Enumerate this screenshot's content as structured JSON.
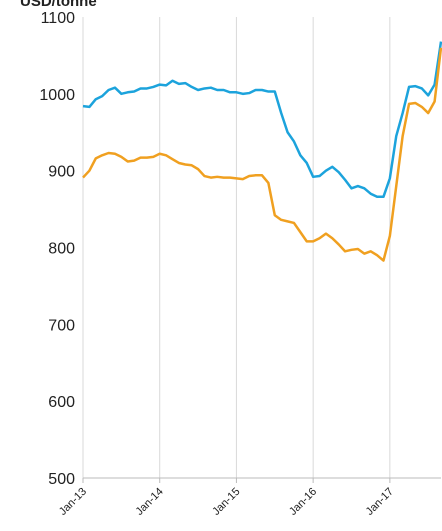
{
  "chart_data": {
    "type": "line",
    "title": "USD/tonne",
    "categories": [
      "Jan-13",
      null,
      null,
      null,
      null,
      null,
      null,
      null,
      null,
      null,
      null,
      null,
      "Jan-14",
      null,
      null,
      null,
      null,
      null,
      null,
      null,
      null,
      null,
      null,
      null,
      "Jan-15",
      null,
      null,
      null,
      null,
      null,
      null,
      null,
      null,
      null,
      null,
      null,
      "Jan-16",
      null,
      null,
      null,
      null,
      null,
      null,
      null,
      null,
      null,
      null,
      null,
      "Jan-17",
      null,
      null,
      null,
      null,
      null,
      null,
      null,
      null
    ],
    "series": [
      {
        "color": "#1ca3dc",
        "values": [
          984,
          983,
          993,
          997,
          1005,
          1008,
          1000,
          1002,
          1003,
          1007,
          1007,
          1009,
          1012,
          1011,
          1017,
          1013,
          1014,
          1009,
          1005,
          1007,
          1008,
          1005,
          1005,
          1002,
          1002,
          1000,
          1001,
          1005,
          1005,
          1003,
          1003,
          975,
          950,
          938,
          920,
          910,
          892,
          893,
          900,
          905,
          898,
          888,
          877,
          880,
          877,
          870,
          866,
          866,
          890,
          945,
          975,
          1009,
          1010,
          1007,
          998,
          1012,
          1068
        ]
      },
      {
        "color": "#f0a020",
        "values": [
          891,
          900,
          916,
          920,
          923,
          922,
          918,
          912,
          913,
          917,
          917,
          918,
          922,
          920,
          915,
          910,
          908,
          907,
          902,
          893,
          891,
          892,
          891,
          891,
          890,
          889,
          893,
          894,
          894,
          884,
          842,
          836,
          834,
          832,
          820,
          808,
          808,
          812,
          818,
          812,
          804,
          795,
          797,
          798,
          792,
          795,
          790,
          783,
          815,
          880,
          945,
          987,
          988,
          983,
          975,
          990,
          1060
        ]
      }
    ],
    "ylim": [
      500,
      1100
    ],
    "yticks": [
      500,
      600,
      700,
      800,
      900,
      1000,
      1100
    ],
    "grid": true
  }
}
